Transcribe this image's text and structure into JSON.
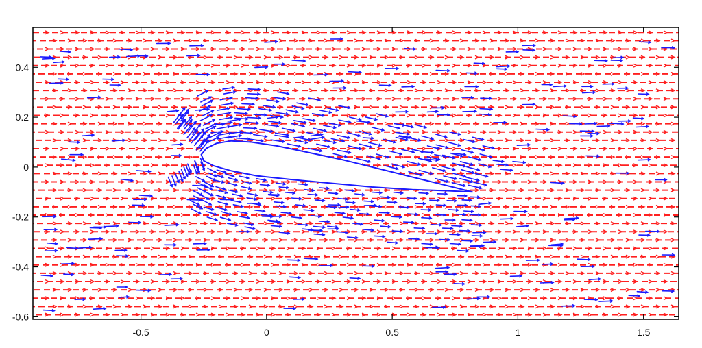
{
  "chart_data": {
    "type": "quiver",
    "title": "",
    "xlabel": "",
    "ylabel": "",
    "xlim": [
      -0.93,
      1.64
    ],
    "ylim": [
      -0.61,
      0.56
    ],
    "xticks": [
      -0.5,
      0,
      0.5,
      1,
      1.5
    ],
    "xtick_labels": [
      "-0.5",
      "0",
      "0.5",
      "1",
      "1.5"
    ],
    "yticks": [
      0.4,
      0.2,
      0,
      -0.2,
      -0.4,
      -0.6
    ],
    "ytick_labels": [
      "0.4",
      "0.2",
      "0",
      "-0.2",
      "-0.4",
      "-0.6"
    ],
    "grid": false,
    "legend": "none",
    "airfoil": {
      "leading_edge": [
        -0.26,
        0.05
      ],
      "trailing_edge": [
        0.82,
        -0.1
      ],
      "upper_surface": [
        [
          -0.26,
          0.05
        ],
        [
          -0.24,
          0.075
        ],
        [
          -0.2,
          0.095
        ],
        [
          -0.14,
          0.105
        ],
        [
          -0.06,
          0.1
        ],
        [
          0.04,
          0.085
        ],
        [
          0.16,
          0.06
        ],
        [
          0.3,
          0.03
        ],
        [
          0.46,
          -0.01
        ],
        [
          0.62,
          -0.05
        ],
        [
          0.74,
          -0.08
        ],
        [
          0.82,
          -0.1
        ]
      ],
      "lower_surface": [
        [
          0.82,
          -0.1
        ],
        [
          0.72,
          -0.095
        ],
        [
          0.58,
          -0.09
        ],
        [
          0.42,
          -0.08
        ],
        [
          0.26,
          -0.065
        ],
        [
          0.1,
          -0.05
        ],
        [
          -0.04,
          -0.035
        ],
        [
          -0.14,
          -0.015
        ],
        [
          -0.21,
          0.005
        ],
        [
          -0.25,
          0.025
        ],
        [
          -0.26,
          0.05
        ]
      ]
    },
    "series": [
      {
        "kind": "uniform-freestream",
        "color": "#ff2020",
        "u": 1.0,
        "v": 0.0
      },
      {
        "kind": "perturbed-flow",
        "color": "#1a1aff"
      }
    ],
    "colors": {
      "axes": "#000000",
      "background": "#ffffff"
    }
  }
}
